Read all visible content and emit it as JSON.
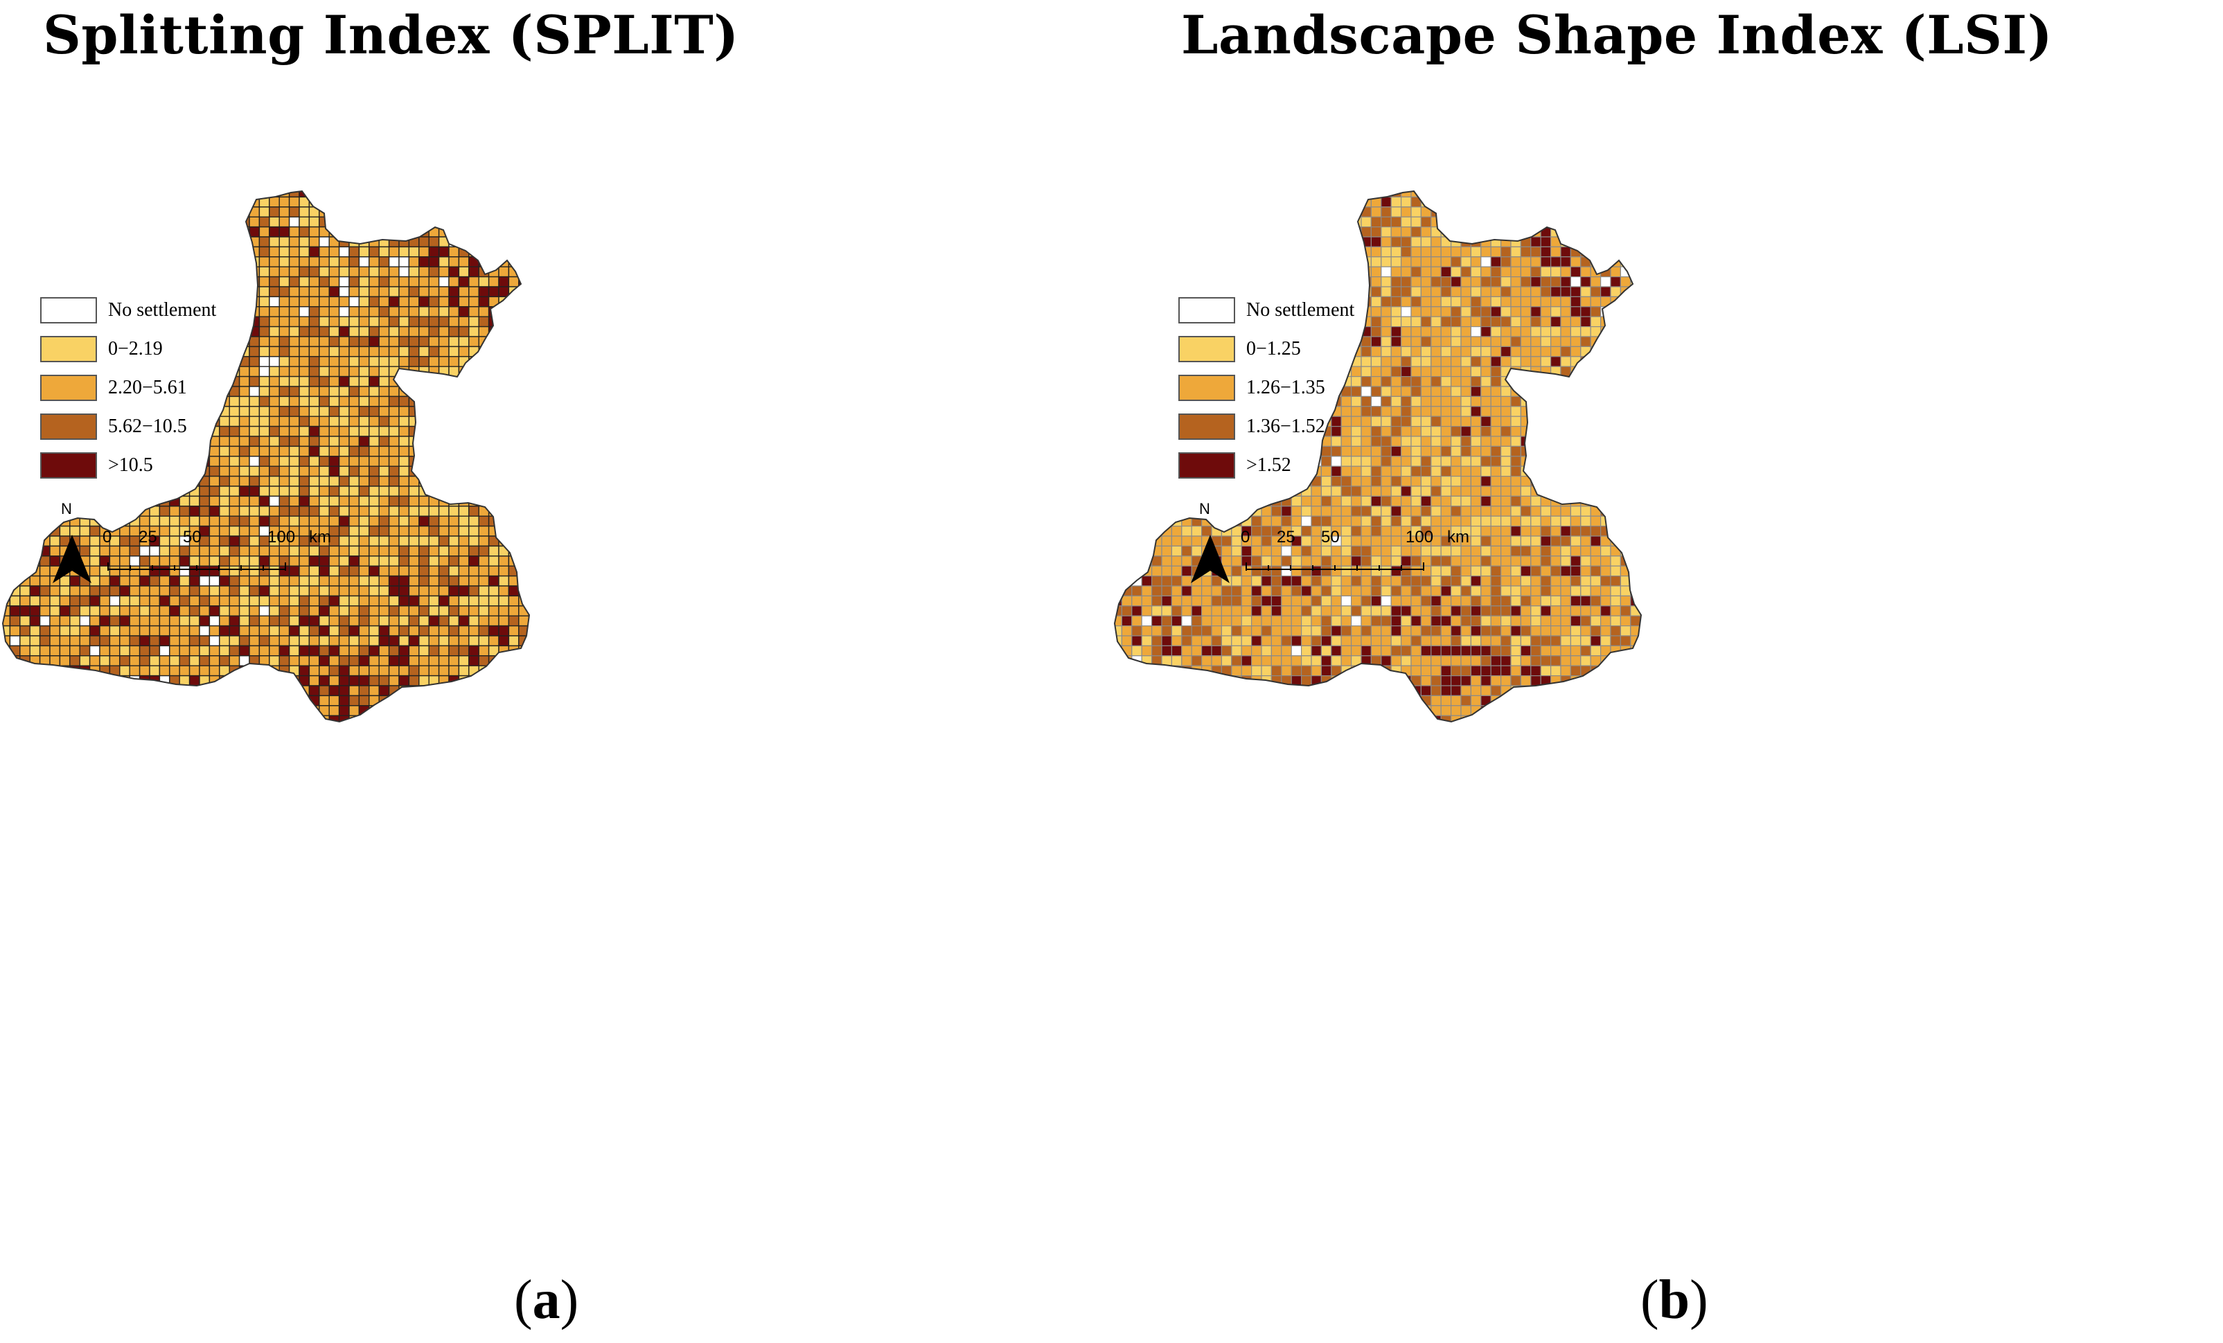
{
  "panels": [
    {
      "id": "a",
      "title": "Splitting Index (SPLIT)",
      "caption_open": "(",
      "caption_letter": "a",
      "caption_close": ")",
      "grid_line_color": "#222222",
      "legend": [
        {
          "label": "No settlement",
          "color": "#ffffff"
        },
        {
          "label": "0−2.19",
          "color": "#f9d264"
        },
        {
          "label": "2.20−5.61",
          "color": "#eea83a"
        },
        {
          "label": "5.62−10.5",
          "color": "#b5631f"
        },
        {
          "label": ">10.5",
          "color": "#6e0b0b"
        }
      ]
    },
    {
      "id": "b",
      "title": "Landscape Shape Index (LSI)",
      "caption_open": "(",
      "caption_letter": "b",
      "caption_close": ")",
      "grid_line_color": "#8a8a8a",
      "legend": [
        {
          "label": "No settlement",
          "color": "#ffffff"
        },
        {
          "label": "0−1.25",
          "color": "#f9d264"
        },
        {
          "label": "1.26−1.35",
          "color": "#eea83a"
        },
        {
          "label": "1.36−1.52",
          "color": "#b5631f"
        },
        {
          "label": ">1.52",
          "color": "#6e0b0b"
        }
      ]
    }
  ],
  "north_label": "N",
  "scale": {
    "ticks": [
      "0",
      "25",
      "50",
      "100"
    ],
    "unit": "km"
  }
}
